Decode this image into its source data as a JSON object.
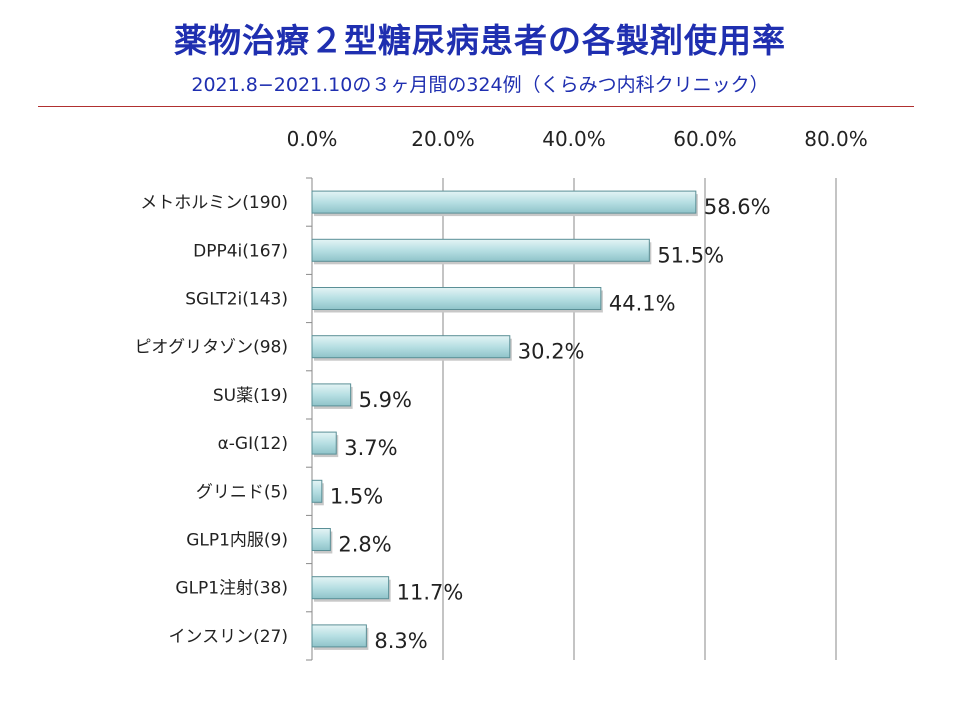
{
  "chart_data": {
    "type": "bar",
    "orientation": "horizontal",
    "title": "薬物治療２型糖尿病患者の各製剤使用率",
    "subtitle": "2021.8−2021.10の３ヶ月間の324例（くらみつ内科クリニック）",
    "categories": [
      "メトホルミン(190)",
      "DPP4i(167)",
      "SGLT2i(143)",
      "ピオグリタゾン(98)",
      "SU薬(19)",
      "α-GI(12)",
      "グリニド(5)",
      "GLP1内服(9)",
      "GLP1注射(38)",
      "インスリン(27)"
    ],
    "values": [
      58.6,
      51.5,
      44.1,
      30.2,
      5.9,
      3.7,
      1.5,
      2.8,
      11.7,
      8.3
    ],
    "data_labels": [
      "58.6%",
      "51.5%",
      "44.1%",
      "30.2%",
      "5.9%",
      "3.7%",
      "1.5%",
      "2.8%",
      "11.7%",
      "8.3%"
    ],
    "x_ticks": [
      0,
      20,
      40,
      60,
      80
    ],
    "x_tick_labels": [
      "0.0%",
      "20.0%",
      "40.0%",
      "60.0%",
      "80.0%"
    ],
    "xlim": [
      0,
      80
    ],
    "axis_position": "top",
    "grid": true,
    "legend": "none",
    "bar_color": "#aed8dc",
    "bar_edge_color": "#5a8f96",
    "title_color": "#1f2fb0"
  }
}
